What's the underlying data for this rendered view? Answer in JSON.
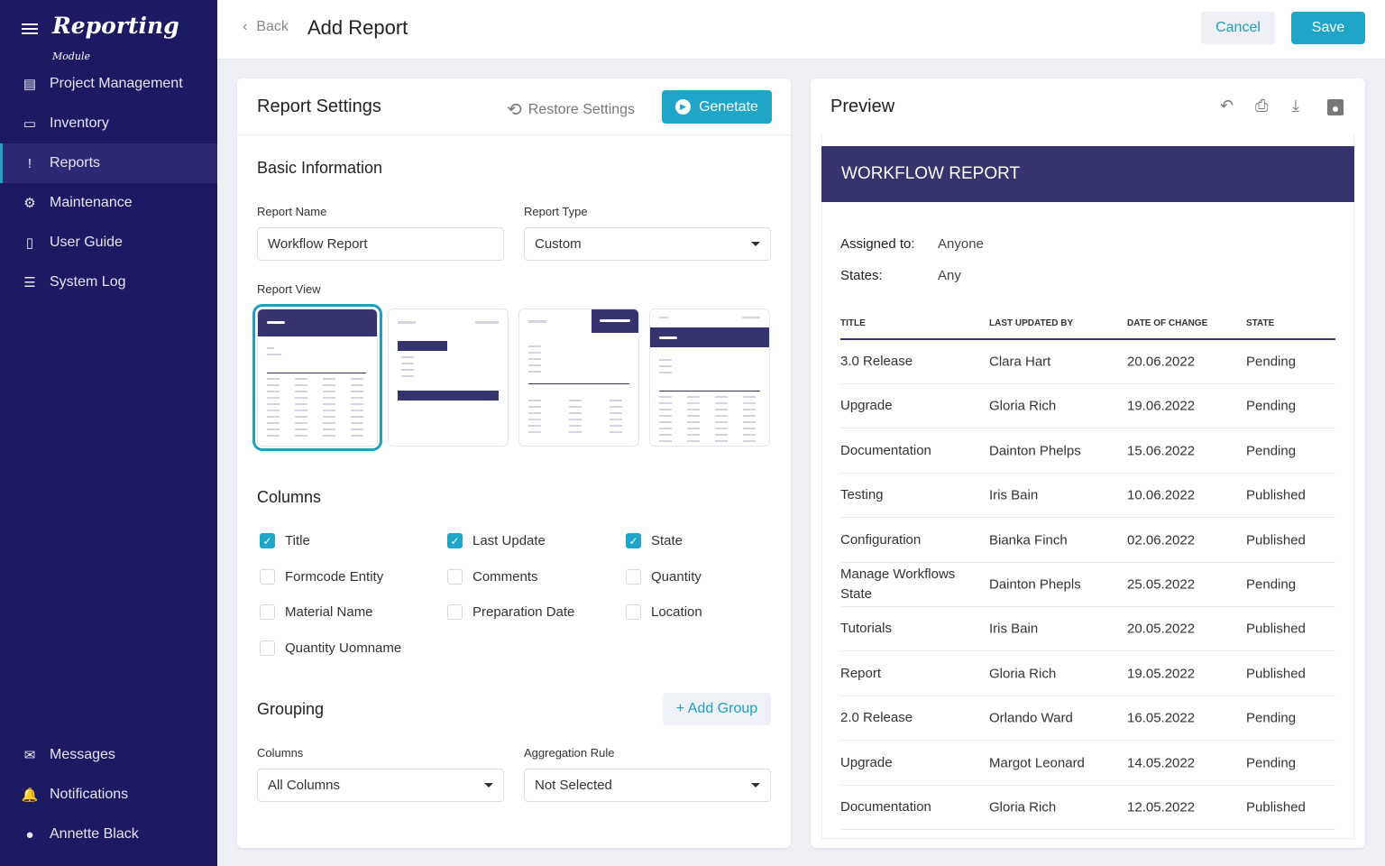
{
  "app": {
    "logo": "Reporting",
    "logo_sub": "Module"
  },
  "sidebar": {
    "items": [
      {
        "label": "Project Management",
        "icon": "clipboard-icon"
      },
      {
        "label": "Inventory",
        "icon": "archive-icon"
      },
      {
        "label": "Reports",
        "icon": "alert-icon",
        "active": true
      },
      {
        "label": "Maintenance",
        "icon": "gear-icon"
      },
      {
        "label": "User Guide",
        "icon": "book-icon"
      },
      {
        "label": "System Log",
        "icon": "list-icon"
      }
    ],
    "bottom": [
      {
        "label": "Messages",
        "icon": "mail-icon"
      },
      {
        "label": "Notifications",
        "icon": "bell-icon"
      },
      {
        "label": "Annette Black",
        "icon": "avatar"
      }
    ]
  },
  "header": {
    "back": "Back",
    "title": "Add Report",
    "cancel": "Cancel",
    "save": "Save"
  },
  "settings": {
    "title": "Report Settings",
    "restore": "Restore Settings",
    "generate": "Genetate",
    "basic": "Basic Information",
    "name_label": "Report Name",
    "name_value": "Workflow Report",
    "type_label": "Report Type",
    "type_value": "Custom",
    "view_label": "Report View",
    "selected_view": 1,
    "columns_title": "Columns",
    "columns": [
      {
        "label": "Title",
        "checked": true
      },
      {
        "label": "Last Update",
        "checked": true
      },
      {
        "label": "State",
        "checked": true
      },
      {
        "label": "Formcode Entity",
        "checked": false
      },
      {
        "label": "Comments",
        "checked": false
      },
      {
        "label": "Quantity",
        "checked": false
      },
      {
        "label": "Material Name",
        "checked": false
      },
      {
        "label": "Preparation Date",
        "checked": false
      },
      {
        "label": "Location",
        "checked": false
      },
      {
        "label": "Quantity Uomname",
        "checked": false
      }
    ],
    "grouping": "Grouping",
    "add_group": "+ Add Group",
    "g_columns_label": "Columns",
    "g_columns_value": "All Columns",
    "agg_label": "Aggregation Rule",
    "agg_value": "Not Selected"
  },
  "preview": {
    "title": "Preview",
    "report_title": "WORKFLOW REPORT",
    "assigned_label": "Assigned to:",
    "assigned_value": "Anyone",
    "states_label": "States:",
    "states_value": "Any",
    "headers": [
      "TITLE",
      "LAST UPDATED BY",
      "DATE OF CHANGE",
      "STATE"
    ],
    "rows": [
      [
        "3.0 Release",
        "Clara Hart",
        "20.06.2022",
        "Pending"
      ],
      [
        "Upgrade",
        "Gloria Rich",
        "19.06.2022",
        "Pending"
      ],
      [
        "Documentation",
        "Dainton Phelps",
        "15.06.2022",
        "Pending"
      ],
      [
        "Testing",
        "Iris Bain",
        "10.06.2022",
        "Published"
      ],
      [
        "Configuration",
        "Bianka Finch",
        "02.06.2022",
        "Published"
      ],
      [
        "Manage Workflows State",
        "Dainton Phepls",
        "25.05.2022",
        "Pending"
      ],
      [
        "Tutorials",
        "Iris Bain",
        "20.05.2022",
        "Published"
      ],
      [
        "Report",
        "Gloria Rich",
        "19.05.2022",
        "Published"
      ],
      [
        "2.0 Release",
        "Orlando Ward",
        "16.05.2022",
        "Pending"
      ],
      [
        "Upgrade",
        "Margot Leonard",
        "14.05.2022",
        "Pending"
      ],
      [
        "Documentation",
        "Gloria Rich",
        "12.05.2022",
        "Published"
      ]
    ]
  },
  "colors": {
    "sidebar": "#1c1a63",
    "accent": "#1ea5c8",
    "report_header": "#35346e"
  }
}
